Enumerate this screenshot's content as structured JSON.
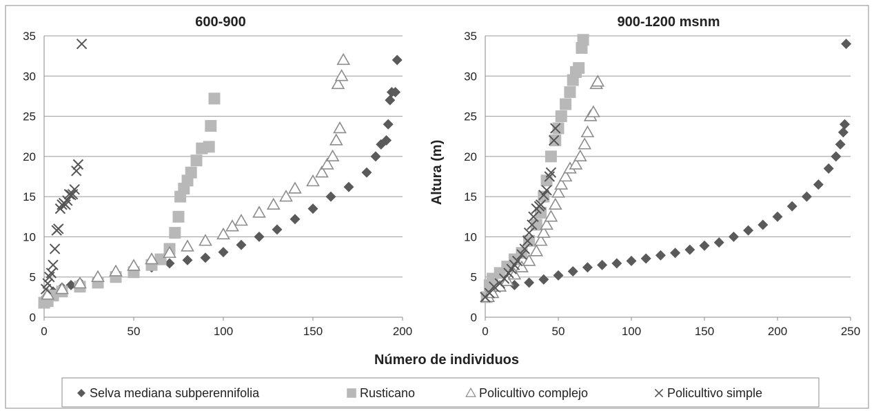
{
  "chart_data": [
    {
      "type": "scatter",
      "title": "600-900",
      "xlim": [
        0,
        200
      ],
      "ylim": [
        0,
        35
      ],
      "xticks": [
        "0",
        "50",
        "100",
        "150",
        "200"
      ],
      "yticks": [
        "0",
        "5",
        "10",
        "15",
        "20",
        "25",
        "30",
        "35"
      ],
      "grid": "horizontal",
      "series": [
        {
          "name": "Selva mediana subperennifolia",
          "marker": "diamond",
          "points": [
            [
              1,
              2.5
            ],
            [
              5,
              3.2
            ],
            [
              10,
              3.7
            ],
            [
              15,
              4.0
            ],
            [
              20,
              4.3
            ],
            [
              30,
              4.8
            ],
            [
              40,
              5.2
            ],
            [
              50,
              5.7
            ],
            [
              60,
              6.2
            ],
            [
              70,
              6.7
            ],
            [
              80,
              7.1
            ],
            [
              90,
              7.4
            ],
            [
              100,
              8.1
            ],
            [
              110,
              9.0
            ],
            [
              120,
              10.0
            ],
            [
              130,
              10.9
            ],
            [
              140,
              12.2
            ],
            [
              150,
              13.5
            ],
            [
              160,
              15.0
            ],
            [
              170,
              16.2
            ],
            [
              180,
              18.0
            ],
            [
              185,
              20.0
            ],
            [
              188,
              21.5
            ],
            [
              191,
              22.0
            ],
            [
              192,
              24.0
            ],
            [
              193,
              27.0
            ],
            [
              194,
              28.0
            ],
            [
              196,
              28.0
            ],
            [
              197,
              32.0
            ]
          ]
        },
        {
          "name": "Rusticano",
          "marker": "square",
          "points": [
            [
              0,
              1.8
            ],
            [
              2,
              2.0
            ],
            [
              5,
              2.7
            ],
            [
              10,
              3.2
            ],
            [
              20,
              3.8
            ],
            [
              30,
              4.3
            ],
            [
              40,
              5.0
            ],
            [
              50,
              5.6
            ],
            [
              60,
              6.5
            ],
            [
              65,
              7.2
            ],
            [
              70,
              8.5
            ],
            [
              73,
              10.5
            ],
            [
              75,
              12.5
            ],
            [
              76,
              15.0
            ],
            [
              78,
              16.0
            ],
            [
              80,
              17.0
            ],
            [
              82,
              18.0
            ],
            [
              85,
              19.5
            ],
            [
              88,
              21.0
            ],
            [
              92,
              21.2
            ],
            [
              93,
              23.8
            ],
            [
              95,
              27.2
            ]
          ]
        },
        {
          "name": "Policultivo complejo",
          "marker": "triangle",
          "points": [
            [
              2,
              2.8
            ],
            [
              10,
              3.5
            ],
            [
              20,
              4.2
            ],
            [
              30,
              5.0
            ],
            [
              40,
              5.7
            ],
            [
              50,
              6.4
            ],
            [
              60,
              7.2
            ],
            [
              70,
              8.0
            ],
            [
              80,
              8.8
            ],
            [
              90,
              9.5
            ],
            [
              100,
              10.3
            ],
            [
              105,
              11.3
            ],
            [
              110,
              12.0
            ],
            [
              120,
              13.0
            ],
            [
              128,
              14.0
            ],
            [
              135,
              15.0
            ],
            [
              140,
              16.0
            ],
            [
              150,
              16.9
            ],
            [
              155,
              18.0
            ],
            [
              158,
              19.0
            ],
            [
              161,
              20.0
            ],
            [
              163,
              22.0
            ],
            [
              165,
              23.5
            ],
            [
              164,
              29.0
            ],
            [
              166,
              30.0
            ],
            [
              167,
              32.0
            ]
          ]
        },
        {
          "name": "Policultivo simple",
          "marker": "x",
          "points": [
            [
              1,
              3.5
            ],
            [
              2,
              4.2
            ],
            [
              3,
              5.0
            ],
            [
              4,
              5.5
            ],
            [
              5,
              6.5
            ],
            [
              6,
              8.5
            ],
            [
              7,
              10.8
            ],
            [
              8,
              11.0
            ],
            [
              9,
              13.5
            ],
            [
              10,
              14.0
            ],
            [
              11,
              14.2
            ],
            [
              12,
              14.0
            ],
            [
              13,
              14.5
            ],
            [
              14,
              15.3
            ],
            [
              15,
              15.2
            ],
            [
              16,
              15.3
            ],
            [
              17,
              15.9
            ],
            [
              18,
              18.2
            ],
            [
              19,
              19.0
            ],
            [
              21,
              34.0
            ]
          ]
        }
      ]
    },
    {
      "type": "scatter",
      "title": "900-1200 msnm",
      "ylabel": "Altura (m)",
      "xlim": [
        0,
        250
      ],
      "ylim": [
        0,
        35
      ],
      "xticks": [
        "0",
        "50",
        "100",
        "150",
        "200",
        "250"
      ],
      "yticks": [
        "0",
        "5",
        "10",
        "15",
        "20",
        "25",
        "30",
        "35"
      ],
      "grid": "horizontal",
      "series": [
        {
          "name": "Selva mediana subperennifolia",
          "marker": "diamond",
          "points": [
            [
              1,
              2.8
            ],
            [
              5,
              3.3
            ],
            [
              10,
              3.7
            ],
            [
              20,
              4.0
            ],
            [
              30,
              4.3
            ],
            [
              40,
              4.7
            ],
            [
              50,
              5.2
            ],
            [
              60,
              5.7
            ],
            [
              70,
              6.2
            ],
            [
              80,
              6.5
            ],
            [
              90,
              6.7
            ],
            [
              100,
              7.0
            ],
            [
              110,
              7.3
            ],
            [
              120,
              7.7
            ],
            [
              130,
              8.0
            ],
            [
              140,
              8.4
            ],
            [
              150,
              8.9
            ],
            [
              160,
              9.3
            ],
            [
              170,
              10.0
            ],
            [
              180,
              10.8
            ],
            [
              190,
              11.5
            ],
            [
              200,
              12.5
            ],
            [
              210,
              13.8
            ],
            [
              220,
              15.0
            ],
            [
              228,
              16.5
            ],
            [
              235,
              18.5
            ],
            [
              240,
              20.0
            ],
            [
              243,
              21.5
            ],
            [
              245,
              23.0
            ],
            [
              246,
              24.0
            ],
            [
              247,
              34.0
            ]
          ]
        },
        {
          "name": "Rusticano",
          "marker": "square",
          "points": [
            [
              1,
              2.5
            ],
            [
              3,
              4.0
            ],
            [
              5,
              4.8
            ],
            [
              10,
              5.5
            ],
            [
              15,
              6.3
            ],
            [
              20,
              7.2
            ],
            [
              25,
              8.0
            ],
            [
              30,
              9.5
            ],
            [
              35,
              11.5
            ],
            [
              38,
              13.0
            ],
            [
              40,
              15.0
            ],
            [
              42,
              17.0
            ],
            [
              45,
              20.0
            ],
            [
              48,
              22.0
            ],
            [
              50,
              23.5
            ],
            [
              52,
              25.0
            ],
            [
              55,
              26.5
            ],
            [
              58,
              28.0
            ],
            [
              60,
              29.5
            ],
            [
              62,
              30.5
            ],
            [
              64,
              31.0
            ],
            [
              66,
              33.5
            ],
            [
              67,
              34.5
            ]
          ]
        },
        {
          "name": "Policultivo complejo",
          "marker": "triangle",
          "points": [
            [
              2,
              2.5
            ],
            [
              5,
              3.0
            ],
            [
              10,
              3.8
            ],
            [
              15,
              4.5
            ],
            [
              20,
              5.3
            ],
            [
              25,
              6.2
            ],
            [
              30,
              7.0
            ],
            [
              35,
              8.2
            ],
            [
              38,
              9.5
            ],
            [
              40,
              10.5
            ],
            [
              42,
              11.5
            ],
            [
              45,
              12.5
            ],
            [
              48,
              14.0
            ],
            [
              50,
              15.5
            ],
            [
              52,
              16.5
            ],
            [
              55,
              17.5
            ],
            [
              58,
              18.5
            ],
            [
              62,
              19.0
            ],
            [
              65,
              20.0
            ],
            [
              68,
              21.5
            ],
            [
              70,
              23.0
            ],
            [
              72,
              25.0
            ],
            [
              74,
              25.5
            ],
            [
              76,
              29.0
            ],
            [
              77,
              29.3
            ]
          ]
        },
        {
          "name": "Policultivo simple",
          "marker": "x",
          "points": [
            [
              0,
              2.5
            ],
            [
              3,
              3.0
            ],
            [
              6,
              3.8
            ],
            [
              10,
              4.2
            ],
            [
              13,
              4.8
            ],
            [
              16,
              5.5
            ],
            [
              18,
              6.0
            ],
            [
              20,
              6.5
            ],
            [
              22,
              7.0
            ],
            [
              25,
              7.8
            ],
            [
              27,
              8.5
            ],
            [
              29,
              9.5
            ],
            [
              30,
              10.5
            ],
            [
              32,
              11.5
            ],
            [
              33,
              12.5
            ],
            [
              35,
              13.5
            ],
            [
              37,
              13.8
            ],
            [
              38,
              14.0
            ],
            [
              40,
              15.2
            ],
            [
              42,
              15.8
            ],
            [
              44,
              17.5
            ],
            [
              45,
              18.0
            ],
            [
              47,
              22.0
            ],
            [
              48,
              23.5
            ]
          ]
        }
      ]
    }
  ],
  "shared": {
    "xlabel": "Número de individuos",
    "legend_position": "bottom",
    "legend": [
      {
        "marker": "diamond",
        "label": "Selva mediana subperennifolia"
      },
      {
        "marker": "square",
        "label": "Rusticano"
      },
      {
        "marker": "triangle",
        "label": "Policultivo complejo"
      },
      {
        "marker": "x",
        "label": "Policultivo simple"
      }
    ],
    "colors": {
      "diamond": "#5a5a5a",
      "square": "#b8b8b8",
      "triangle": "#8c8c8c",
      "x": "#555555",
      "grid": "#9a9a9a",
      "axis": "#888888"
    }
  }
}
